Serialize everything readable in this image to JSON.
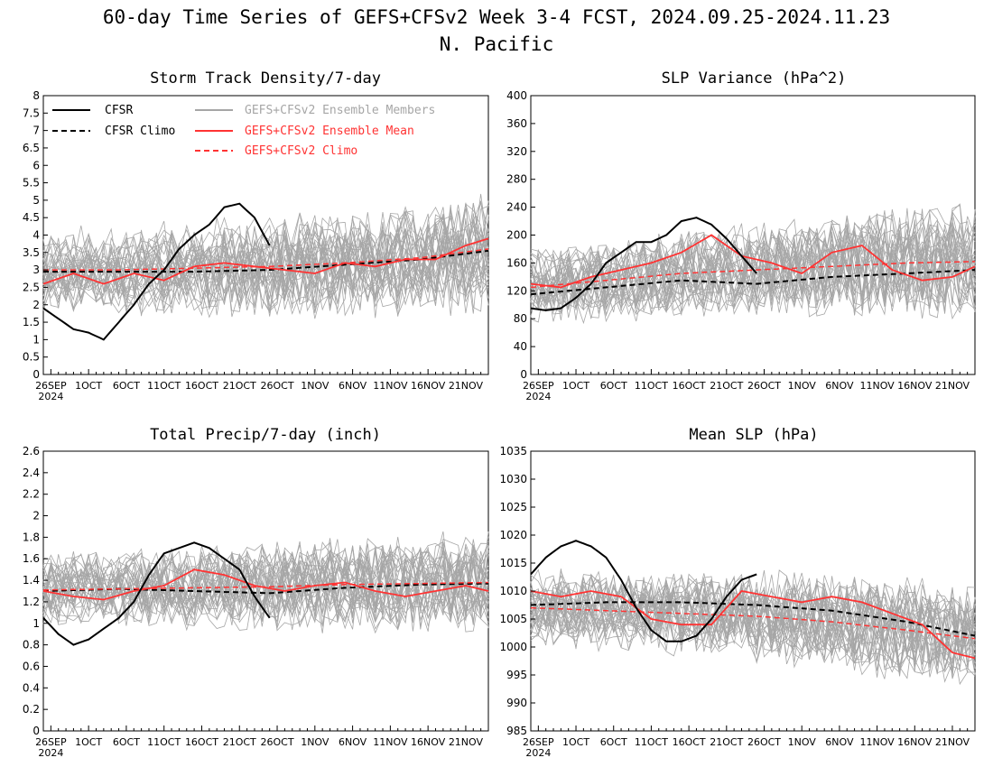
{
  "figure": {
    "title": "60-day Time Series of GEFS+CFSv2 Week 3-4 FCST, 2024.09.25-2024.11.23",
    "subtitle": "N. Pacific"
  },
  "colors": {
    "cfsr": "#000000",
    "members": "#a6a6a6",
    "mean": "#ff3333"
  },
  "legend": {
    "cfsr": "CFSR",
    "cfsr_climo": "CFSR Climo",
    "members": "GEFS+CFSv2 Ensemble Members",
    "mean": "GEFS+CFSv2 Ensemble Mean",
    "climo": "GEFS+CFSv2 Climo"
  },
  "chart_data": [
    {
      "type": "line",
      "title": "Storm Track Density/7-day",
      "ylim": [
        0,
        8
      ],
      "yticks": [
        "0",
        "0.5",
        "1",
        "1.5",
        "2",
        "2.5",
        "3",
        "3.5",
        "4",
        "4.5",
        "5",
        "5.5",
        "6",
        "6.5",
        "7",
        "7.5",
        "8"
      ],
      "xtick_days": [
        1,
        6,
        11,
        16,
        21,
        26,
        31,
        36,
        41,
        46,
        51,
        56
      ],
      "xtick_labels": [
        "26SEP",
        "1OCT",
        "6OCT",
        "11OCT",
        "16OCT",
        "21OCT",
        "26OCT",
        "1NOV",
        "6NOV",
        "11NOV",
        "16NOV",
        "21NOV"
      ],
      "year_label": "2024",
      "cfsr": {
        "days": [
          0,
          2,
          4,
          6,
          8,
          10,
          12,
          14,
          16,
          18,
          20,
          22,
          24,
          26,
          28,
          30
        ],
        "values": [
          1.9,
          1.6,
          1.3,
          1.2,
          1.0,
          1.5,
          2.0,
          2.6,
          3.0,
          3.6,
          4.0,
          4.3,
          4.8,
          4.9,
          4.5,
          3.7
        ]
      },
      "cfsr_climo": {
        "days": [
          0,
          10,
          20,
          30,
          40,
          50,
          59
        ],
        "values": [
          2.95,
          2.95,
          2.95,
          3.0,
          3.15,
          3.3,
          3.55
        ]
      },
      "climo": {
        "days": [
          0,
          10,
          20,
          30,
          40,
          50,
          59
        ],
        "values": [
          3.0,
          3.0,
          3.05,
          3.1,
          3.2,
          3.35,
          3.6
        ]
      },
      "mean": {
        "days": [
          0,
          4,
          8,
          12,
          16,
          20,
          24,
          28,
          32,
          36,
          40,
          44,
          48,
          52,
          56,
          59
        ],
        "values": [
          2.6,
          2.9,
          2.6,
          2.9,
          2.7,
          3.1,
          3.2,
          3.1,
          3.0,
          2.9,
          3.2,
          3.1,
          3.3,
          3.3,
          3.7,
          3.9
        ]
      },
      "members": {
        "count": 32,
        "center": 3.0,
        "spread": 0.75,
        "amp_start": 0.8,
        "amp_end": 1.4,
        "seed": 11
      }
    },
    {
      "type": "line",
      "title": "SLP Variance (hPa^2)",
      "ylim": [
        0,
        400
      ],
      "yticks": [
        "0",
        "40",
        "80",
        "120",
        "160",
        "200",
        "240",
        "280",
        "320",
        "360",
        "400"
      ],
      "xtick_days": [
        1,
        6,
        11,
        16,
        21,
        26,
        31,
        36,
        41,
        46,
        51,
        56
      ],
      "xtick_labels": [
        "26SEP",
        "1OCT",
        "6OCT",
        "11OCT",
        "16OCT",
        "21OCT",
        "26OCT",
        "1NOV",
        "6NOV",
        "11NOV",
        "16NOV",
        "21NOV"
      ],
      "year_label": "2024",
      "cfsr": {
        "days": [
          0,
          2,
          4,
          6,
          8,
          10,
          12,
          14,
          16,
          18,
          20,
          22,
          24,
          26,
          28,
          30
        ],
        "values": [
          95,
          92,
          95,
          110,
          130,
          160,
          175,
          190,
          190,
          200,
          220,
          225,
          215,
          195,
          170,
          145
        ]
      },
      "cfsr_climo": {
        "days": [
          0,
          10,
          20,
          30,
          40,
          50,
          59
        ],
        "values": [
          115,
          125,
          135,
          130,
          140,
          145,
          150
        ]
      },
      "climo": {
        "days": [
          0,
          10,
          20,
          30,
          40,
          50,
          59
        ],
        "values": [
          125,
          135,
          145,
          150,
          155,
          160,
          162
        ]
      },
      "mean": {
        "days": [
          0,
          4,
          8,
          12,
          16,
          20,
          24,
          28,
          32,
          36,
          40,
          44,
          48,
          52,
          56,
          59
        ],
        "values": [
          130,
          125,
          140,
          150,
          160,
          175,
          200,
          170,
          160,
          145,
          175,
          185,
          150,
          135,
          140,
          155
        ]
      },
      "members": {
        "count": 32,
        "center": 150,
        "spread": 28,
        "amp_start": 40,
        "amp_end": 70,
        "seed": 23
      }
    },
    {
      "type": "line",
      "title": "Total Precip/7-day (inch)",
      "ylim": [
        0,
        2.6
      ],
      "yticks": [
        "0",
        "0.2",
        "0.4",
        "0.6",
        "0.8",
        "1",
        "1.2",
        "1.4",
        "1.6",
        "1.8",
        "2",
        "2.2",
        "2.4",
        "2.6"
      ],
      "xtick_days": [
        1,
        6,
        11,
        16,
        21,
        26,
        31,
        36,
        41,
        46,
        51,
        56
      ],
      "xtick_labels": [
        "26SEP",
        "1OCT",
        "6OCT",
        "11OCT",
        "16OCT",
        "21OCT",
        "26OCT",
        "1NOV",
        "6NOV",
        "11NOV",
        "16NOV",
        "21NOV"
      ],
      "year_label": "2024",
      "cfsr": {
        "days": [
          0,
          2,
          4,
          6,
          8,
          10,
          12,
          14,
          16,
          18,
          20,
          22,
          24,
          26,
          28,
          30
        ],
        "values": [
          1.05,
          0.9,
          0.8,
          0.85,
          0.95,
          1.05,
          1.2,
          1.45,
          1.65,
          1.7,
          1.75,
          1.7,
          1.6,
          1.5,
          1.25,
          1.05
        ]
      },
      "cfsr_climo": {
        "days": [
          0,
          10,
          20,
          30,
          40,
          50,
          59
        ],
        "values": [
          1.3,
          1.32,
          1.3,
          1.28,
          1.33,
          1.36,
          1.37
        ]
      },
      "climo": {
        "days": [
          0,
          10,
          20,
          30,
          40,
          50,
          59
        ],
        "values": [
          1.31,
          1.32,
          1.33,
          1.34,
          1.36,
          1.37,
          1.38
        ]
      },
      "mean": {
        "days": [
          0,
          4,
          8,
          12,
          16,
          20,
          24,
          28,
          32,
          36,
          40,
          44,
          48,
          52,
          56,
          59
        ],
        "values": [
          1.3,
          1.25,
          1.22,
          1.3,
          1.35,
          1.5,
          1.45,
          1.35,
          1.3,
          1.35,
          1.38,
          1.3,
          1.25,
          1.3,
          1.35,
          1.3
        ]
      },
      "members": {
        "count": 32,
        "center": 1.3,
        "spread": 0.18,
        "amp_start": 0.25,
        "amp_end": 0.4,
        "seed": 37
      }
    },
    {
      "type": "line",
      "title": "Mean SLP (hPa)",
      "ylim": [
        985,
        1035
      ],
      "yticks": [
        "985",
        "990",
        "995",
        "1000",
        "1005",
        "1010",
        "1015",
        "1020",
        "1025",
        "1030",
        "1035"
      ],
      "xtick_days": [
        1,
        6,
        11,
        16,
        21,
        26,
        31,
        36,
        41,
        46,
        51,
        56
      ],
      "xtick_labels": [
        "26SEP",
        "1OCT",
        "6OCT",
        "11OCT",
        "16OCT",
        "21OCT",
        "26OCT",
        "1NOV",
        "6NOV",
        "11NOV",
        "16NOV",
        "21NOV"
      ],
      "year_label": "2024",
      "cfsr": {
        "days": [
          0,
          2,
          4,
          6,
          8,
          10,
          12,
          14,
          16,
          18,
          20,
          22,
          24,
          26,
          28,
          30
        ],
        "values": [
          1013,
          1016,
          1018,
          1019,
          1018,
          1016,
          1012,
          1007,
          1003,
          1001,
          1001,
          1002,
          1005,
          1009,
          1012,
          1013
        ]
      },
      "cfsr_climo": {
        "days": [
          0,
          10,
          20,
          30,
          40,
          50,
          59
        ],
        "values": [
          1007.5,
          1008,
          1008,
          1007.5,
          1006.5,
          1004.5,
          1002
        ]
      },
      "climo": {
        "days": [
          0,
          10,
          20,
          30,
          40,
          50,
          59
        ],
        "values": [
          1007,
          1006.5,
          1006,
          1005.5,
          1004.5,
          1003,
          1001.5
        ]
      },
      "mean": {
        "days": [
          0,
          4,
          8,
          12,
          16,
          20,
          24,
          28,
          32,
          36,
          40,
          44,
          48,
          52,
          56,
          59
        ],
        "values": [
          1010,
          1009,
          1010,
          1009,
          1005,
          1004,
          1004,
          1010,
          1009,
          1008,
          1009,
          1008,
          1006,
          1004,
          999,
          998
        ]
      },
      "members": {
        "count": 32,
        "center": 1006,
        "spread": 3.5,
        "amp_start": 5,
        "amp_end": 8,
        "seed": 53
      }
    }
  ]
}
